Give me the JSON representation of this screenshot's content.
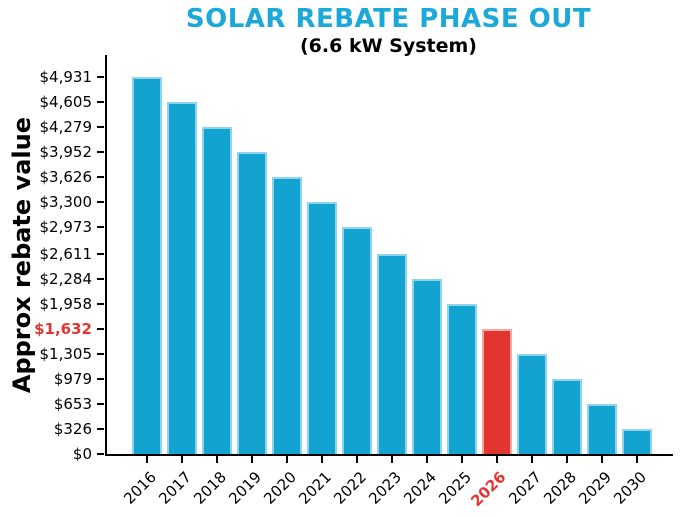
{
  "title": "SOLAR REBATE PHASE OUT",
  "subtitle": "(6.6 kW System)",
  "colors": {
    "title": "#1ca8d8",
    "bar": "#13a3d0",
    "bar_edge": "#8fd4ea",
    "highlight": "#e23531",
    "highlight_edge": "#f2a9a3",
    "axis": "#000000",
    "highlight_text": "#e23531"
  },
  "chart_data": {
    "type": "bar",
    "title": "SOLAR REBATE PHASE OUT",
    "subtitle": "(6.6 kW System)",
    "xlabel": "",
    "ylabel": "Approx rebate value",
    "categories": [
      "2016",
      "2017",
      "2018",
      "2019",
      "2020",
      "2021",
      "2022",
      "2023",
      "2024",
      "2025",
      "2026",
      "2027",
      "2028",
      "2029",
      "2030"
    ],
    "values": [
      4931,
      4605,
      4279,
      3952,
      3626,
      3300,
      2973,
      2611,
      2284,
      1958,
      1632,
      1305,
      979,
      653,
      326
    ],
    "highlight_index": 10,
    "highlight_category": "2026",
    "ylim": [
      0,
      5200
    ],
    "yticks": [
      0,
      326,
      653,
      979,
      1305,
      1632,
      1958,
      2284,
      2611,
      2973,
      3300,
      3626,
      3952,
      4279,
      4605,
      4931
    ],
    "ytick_labels": [
      "$0",
      "$326",
      "$653",
      "$979",
      "$1,305",
      "$1,632",
      "$1,958",
      "$2,284",
      "$2,611",
      "$2,973",
      "$3,300",
      "$3,626",
      "$3,952",
      "$4,279",
      "$4,605",
      "$4,931"
    ],
    "highlight_ytick_index": 5,
    "grid": false,
    "legend": null
  }
}
